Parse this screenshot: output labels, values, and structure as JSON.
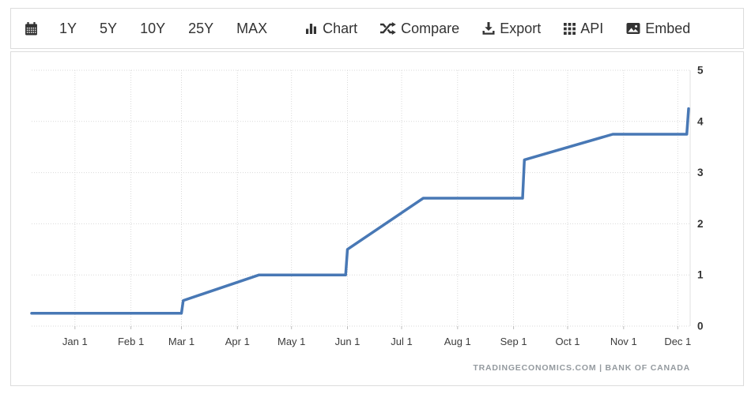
{
  "toolbar": {
    "ranges": [
      {
        "label": "1Y"
      },
      {
        "label": "5Y"
      },
      {
        "label": "10Y"
      },
      {
        "label": "25Y"
      },
      {
        "label": "MAX"
      }
    ],
    "tools": [
      {
        "label": "Chart",
        "icon": "bar-chart-icon"
      },
      {
        "label": "Compare",
        "icon": "shuffle-icon"
      },
      {
        "label": "Export",
        "icon": "download-icon"
      },
      {
        "label": "API",
        "icon": "grid-icon"
      },
      {
        "label": "Embed",
        "icon": "image-icon"
      }
    ]
  },
  "chart_data": {
    "type": "line",
    "attribution": "TRADINGECONOMICS.COM  |  BANK OF CANADA",
    "line_color": "#4878b5",
    "grid": true,
    "legend": false,
    "y_axis_position": "right",
    "ylim": [
      0,
      5
    ],
    "y_ticks": [
      0,
      1,
      2,
      3,
      4,
      5
    ],
    "x_range": [
      "2021-12-08",
      "2022-12-07"
    ],
    "x_ticks": [
      {
        "label": "Jan 1",
        "date": "2022-01-01"
      },
      {
        "label": "Feb 1",
        "date": "2022-02-01"
      },
      {
        "label": "Mar 1",
        "date": "2022-03-01"
      },
      {
        "label": "Apr 1",
        "date": "2022-04-01"
      },
      {
        "label": "May 1",
        "date": "2022-05-01"
      },
      {
        "label": "Jun 1",
        "date": "2022-06-01"
      },
      {
        "label": "Jul 1",
        "date": "2022-07-01"
      },
      {
        "label": "Aug 1",
        "date": "2022-08-01"
      },
      {
        "label": "Sep 1",
        "date": "2022-09-01"
      },
      {
        "label": "Oct 1",
        "date": "2022-10-01"
      },
      {
        "label": "Nov 1",
        "date": "2022-11-01"
      },
      {
        "label": "Dec 1",
        "date": "2022-12-01"
      }
    ],
    "points": [
      {
        "date": "2021-12-08",
        "value": 0.25
      },
      {
        "date": "2022-03-01",
        "value": 0.25
      },
      {
        "date": "2022-03-02",
        "value": 0.5
      },
      {
        "date": "2022-04-13",
        "value": 1.0
      },
      {
        "date": "2022-05-31",
        "value": 1.0
      },
      {
        "date": "2022-06-01",
        "value": 1.5
      },
      {
        "date": "2022-07-13",
        "value": 2.5
      },
      {
        "date": "2022-09-06",
        "value": 2.5
      },
      {
        "date": "2022-09-07",
        "value": 3.25
      },
      {
        "date": "2022-10-26",
        "value": 3.75
      },
      {
        "date": "2022-12-06",
        "value": 3.75
      },
      {
        "date": "2022-12-07",
        "value": 4.25
      }
    ]
  }
}
